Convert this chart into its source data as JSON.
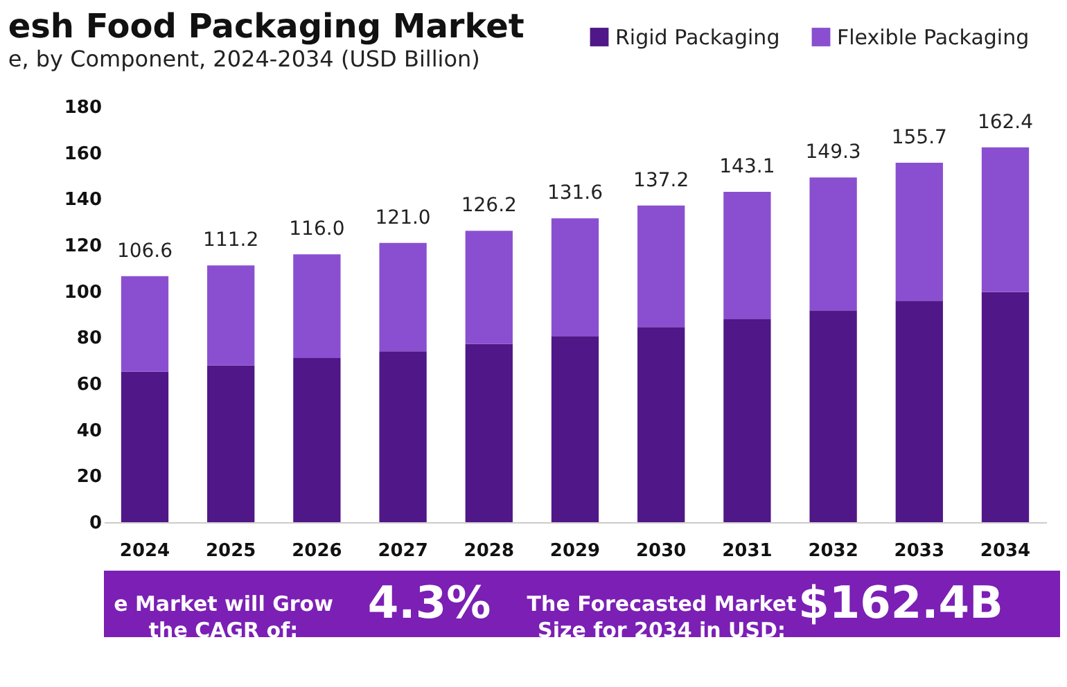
{
  "chart_data": {
    "type": "bar",
    "title": "esh Food Packaging Market",
    "subtitle": "e, by Component, 2024-2034 (USD Billion)",
    "categories": [
      "2024",
      "2025",
      "2026",
      "2027",
      "2028",
      "2029",
      "2030",
      "2031",
      "2032",
      "2033",
      "2034"
    ],
    "stacked": true,
    "series": [
      {
        "name": "Rigid Packaging",
        "color": "#4f1787",
        "values": [
          65.2,
          67.9,
          71.1,
          74.0,
          77.2,
          80.6,
          84.5,
          87.9,
          91.7,
          95.9,
          99.7
        ]
      },
      {
        "name": "Flexible Packaging",
        "color": "#8a4fd0",
        "values": [
          41.4,
          43.3,
          44.9,
          47.0,
          49.0,
          51.0,
          52.7,
          55.2,
          57.6,
          59.8,
          62.7
        ]
      }
    ],
    "totals": [
      "106.6",
      "111.2",
      "116.0",
      "121.0",
      "126.2",
      "131.6",
      "137.2",
      "143.1",
      "149.3",
      "155.7",
      "162.4"
    ],
    "ylim": [
      0,
      180
    ],
    "yticks": [
      0,
      20,
      40,
      60,
      80,
      100,
      120,
      140,
      160,
      180
    ],
    "grid": false,
    "legend": "top right",
    "annotations": [
      "e Market will Grow\nthe CAGR of:",
      "4.3%",
      "The Forecasted Market\nSize for 2034 in USD:",
      "$162.4B"
    ]
  }
}
